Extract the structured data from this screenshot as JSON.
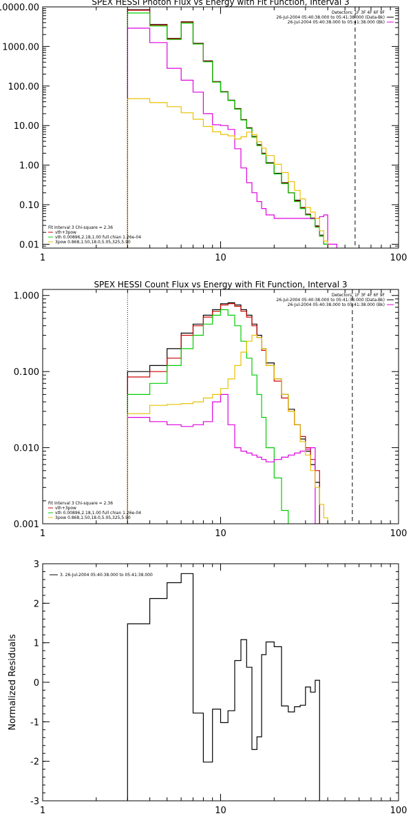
{
  "chart_data": [
    {
      "type": "line",
      "title": "SPEX HESSI Photon Flux vs Energy with Fit Function, Interval 3",
      "xscale": "log",
      "yscale": "log",
      "xlim": [
        1,
        100
      ],
      "ylim": [
        0.008,
        10000
      ],
      "x_ticks": [
        "1",
        "10",
        "100"
      ],
      "y_ticks": [
        "10000.00",
        "1000.00",
        "100.00",
        "10.00",
        "1.00",
        "0.10",
        "0.01"
      ],
      "y_tick_values": [
        10000,
        1000,
        100,
        10,
        1,
        0.1,
        0.01
      ],
      "header_text": [
        "Detectors: 1F 3F 4F 6F 9F",
        "26-Jul-2004 05:40:38.000 to 05:41:38.000 (Data-Bk)",
        "26-Jul-2004 05:40:38.000 to 05:41:38.000 (Bk)"
      ],
      "legend": [
        "Fit Interval 3   Chi-square = 2.36",
        "vth+3pow",
        "vth 0.00896,2.18,1.00  full chian 1.26e-04",
        "3pow 0.868,1.50,18.0,5.05,325,5.90"
      ],
      "vlines": [
        3.0,
        57.0
      ],
      "edges": [
        3,
        4,
        5,
        6,
        7,
        8,
        9,
        10,
        11,
        12,
        13,
        14,
        15,
        16,
        17,
        18,
        20,
        22,
        24,
        26,
        28,
        30,
        32,
        34,
        36,
        38,
        40,
        45,
        50,
        55,
        60,
        65,
        70
      ],
      "series": [
        {
          "name": "Data-Bk",
          "color": "#000000",
          "values": [
            8500,
            3600,
            1600,
            4200,
            1200,
            430,
            130,
            72,
            44,
            27,
            14.2,
            8.8,
            5.3,
            3.3,
            2.0,
            1.15,
            0.62,
            0.36,
            0.2,
            0.13,
            0.085,
            0.058,
            0.046,
            0.029,
            0.017,
            0.01,
            null,
            null,
            null,
            null,
            null,
            null
          ]
        },
        {
          "name": "vth+3pow",
          "color": "#cc0000",
          "values": [
            8200,
            3500,
            1560,
            4100,
            1180,
            420,
            128,
            71,
            43,
            26.5,
            14,
            8.6,
            5.2,
            3.2,
            1.95,
            1.12,
            0.6,
            0.35,
            0.2,
            0.125,
            0.083,
            0.057,
            0.045,
            0.028,
            0.016,
            0.01,
            null,
            null,
            null,
            null,
            null,
            null
          ]
        },
        {
          "name": "vth",
          "color": "#00cc00",
          "values": [
            7000,
            3300,
            1500,
            3900,
            1150,
            410,
            125,
            70,
            43,
            26,
            13.8,
            8.5,
            5.1,
            3.1,
            1.9,
            1.1,
            0.6,
            0.34,
            0.2,
            0.12,
            0.08,
            0.055,
            0.044,
            0.027,
            0.016,
            0.01,
            null,
            null,
            null,
            null,
            null,
            null
          ]
        },
        {
          "name": "3pow",
          "color": "#dd00dd",
          "values": [
            2900,
            1250,
            280,
            140,
            70,
            20,
            10.5,
            10,
            8,
            2.6,
            0.85,
            0.36,
            0.2,
            0.12,
            0.08,
            0.055,
            0.045,
            0.045,
            0.045,
            0.045,
            0.045,
            0.045,
            0.045,
            0.045,
            0.05,
            0.055,
            0.01,
            null,
            null,
            null,
            null,
            null
          ]
        },
        {
          "name": "Bk",
          "color": "#e8c000",
          "values": [
            48,
            38,
            30,
            21,
            14.5,
            9.5,
            7,
            6,
            5.5,
            4.6,
            5.2,
            6.8,
            5.9,
            3.9,
            2.7,
            1.75,
            1.05,
            0.65,
            0.38,
            0.23,
            0.14,
            0.085,
            0.065,
            0.045,
            0.022,
            0.012,
            null,
            null,
            null,
            null,
            null,
            null
          ]
        }
      ]
    },
    {
      "type": "line",
      "title": "SPEX HESSI Count Flux vs Energy with Fit Function, Interval 3",
      "xscale": "log",
      "yscale": "log",
      "xlim": [
        1,
        100
      ],
      "ylim": [
        0.001,
        1.2
      ],
      "x_ticks": [
        "1",
        "10",
        "100"
      ],
      "y_ticks": [
        "1.000",
        "0.100",
        "0.010",
        "0.001"
      ],
      "y_tick_values": [
        1,
        0.1,
        0.01,
        0.001
      ],
      "header_text": [
        "Detectors: 1F 3F 4F 6F 9F",
        "26-Jul-2004 05:40:38.000 to 05:41:38.000 (Data-Bk)",
        "26-Jul-2004 05:40:38.000 to 05:41:38.000 (Bk)"
      ],
      "legend": [
        "Fit Interval 3   Chi-square = 2.36",
        "vth+3pow",
        "vth 0.00896,2.18,1.00  full chian 1.26e-04",
        "3pow 0.868,1.50,18.0,5.05,325,5.90"
      ],
      "vlines": [
        3.0,
        55.0
      ],
      "edges": [
        3,
        4,
        5,
        6,
        7,
        8,
        9,
        10,
        11,
        12,
        13,
        14,
        15,
        16,
        17,
        18,
        20,
        22,
        24,
        26,
        28,
        30,
        32,
        34,
        36,
        38,
        40,
        45,
        50,
        55,
        60,
        65,
        70
      ],
      "series": [
        {
          "name": "Data-Bk",
          "color": "#000000",
          "values": [
            0.1,
            0.12,
            0.2,
            0.32,
            0.42,
            0.55,
            0.65,
            0.78,
            0.8,
            0.75,
            0.65,
            0.55,
            0.42,
            0.3,
            0.2,
            0.13,
            0.08,
            0.05,
            0.032,
            0.02,
            0.013,
            0.009,
            0.006,
            0.0035,
            null,
            null,
            null,
            null,
            null,
            null,
            null,
            null
          ]
        },
        {
          "name": "vth+3pow",
          "color": "#cc0000",
          "values": [
            0.085,
            0.1,
            0.15,
            0.3,
            0.4,
            0.52,
            0.62,
            0.75,
            0.78,
            0.72,
            0.62,
            0.52,
            0.4,
            0.28,
            0.19,
            0.12,
            0.075,
            0.045,
            0.03,
            0.02,
            0.014,
            0.01,
            0.007,
            0.005,
            null,
            null,
            null,
            null,
            null,
            null,
            null,
            null
          ]
        },
        {
          "name": "vth",
          "color": "#00cc00",
          "values": [
            0.05,
            0.07,
            0.12,
            0.2,
            0.3,
            0.42,
            0.55,
            0.65,
            0.55,
            0.4,
            0.25,
            0.15,
            0.09,
            0.05,
            0.025,
            0.01,
            0.004,
            0.0015,
            0.0008,
            null,
            null,
            null,
            null,
            null,
            null,
            null,
            null,
            null,
            null,
            null,
            null,
            null
          ]
        },
        {
          "name": "3pow",
          "color": "#dd00dd",
          "values": [
            0.025,
            0.022,
            0.02,
            0.019,
            0.02,
            0.022,
            0.04,
            0.05,
            0.02,
            0.01,
            0.009,
            0.0085,
            0.008,
            0.0075,
            0.007,
            0.0065,
            0.007,
            0.0075,
            0.008,
            0.0085,
            0.009,
            0.0095,
            0.01,
            0.001,
            null,
            null,
            null,
            null,
            null,
            null,
            null,
            null
          ]
        },
        {
          "name": "Bk",
          "color": "#e8c000",
          "values": [
            0.028,
            0.036,
            0.037,
            0.038,
            0.04,
            0.045,
            0.05,
            0.06,
            0.08,
            0.12,
            0.18,
            0.25,
            0.3,
            0.28,
            0.2,
            0.12,
            0.08,
            0.05,
            0.03,
            0.02,
            0.012,
            0.008,
            0.005,
            0.003,
            0.0018,
            0.0012,
            null,
            null,
            null,
            null,
            null,
            null
          ]
        }
      ]
    },
    {
      "type": "line",
      "title": "",
      "xscale": "log",
      "yscale": "linear",
      "xlim": [
        1,
        100
      ],
      "ylim": [
        -3,
        3
      ],
      "x_ticks": [
        "1",
        "10",
        "100"
      ],
      "y_ticks": [
        "3",
        "2",
        "1",
        "0",
        "-1",
        "-2",
        "-3"
      ],
      "y_tick_values": [
        3,
        2,
        1,
        0,
        -1,
        -2,
        -3
      ],
      "ylabel": "Normalized Residuals",
      "legend": [
        "3. 26-Jul-2004 05:40:38.000 to 05:41:38.000"
      ],
      "edges": [
        3,
        4,
        5,
        6,
        7,
        8,
        9,
        10,
        11,
        12,
        13,
        14,
        15,
        16,
        17,
        18,
        20,
        22,
        24,
        26,
        28,
        30,
        32,
        34,
        36,
        38,
        40,
        45,
        50,
        55,
        60
      ],
      "series": [
        {
          "name": "3. 26-Jul-2004 05:40:38.000 to 05:41:38.000",
          "color": "#000000",
          "values": [
            1.48,
            2.12,
            2.52,
            2.75,
            -0.78,
            -2.02,
            -0.68,
            -1.02,
            -0.72,
            0.55,
            1.08,
            0.38,
            -1.7,
            -1.38,
            0.7,
            1.02,
            0.9,
            -0.6,
            -0.75,
            -0.62,
            -0.58,
            -0.12,
            -0.25,
            0.05
          ]
        }
      ]
    }
  ]
}
